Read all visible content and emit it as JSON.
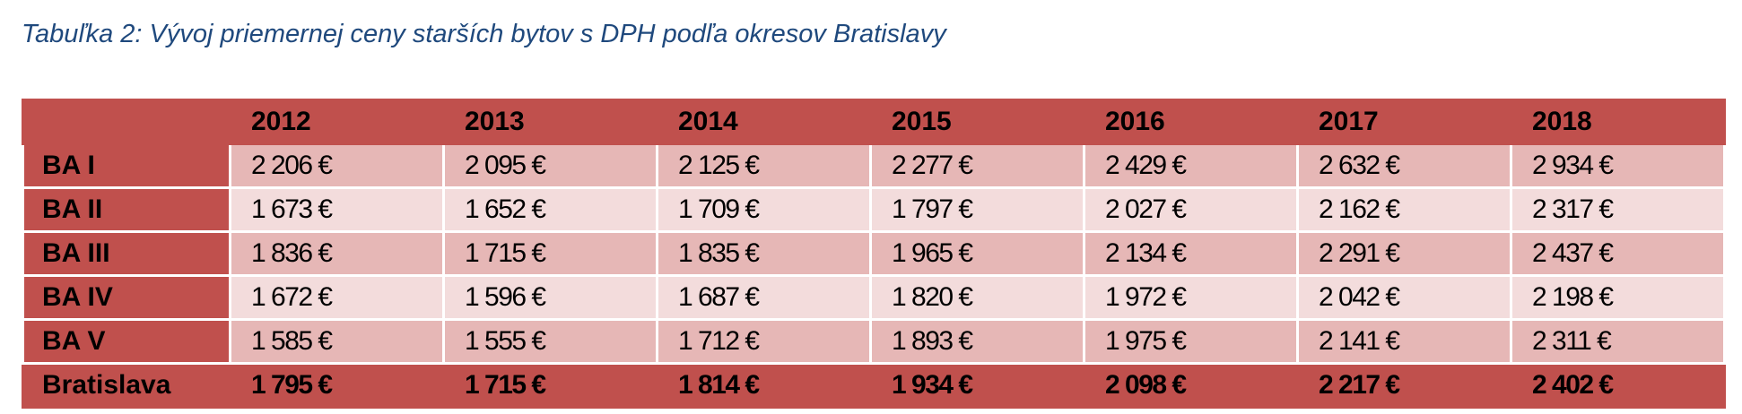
{
  "caption": "Tabuľka 2: Vývoj priemernej ceny starších bytov s DPH podľa okresov Bratislavy",
  "table": {
    "corner": "",
    "years": [
      "2012",
      "2013",
      "2014",
      "2015",
      "2016",
      "2017",
      "2018"
    ],
    "rows": [
      {
        "label": "BA I",
        "values": [
          "2 206 €",
          "2 095 €",
          "2 125 €",
          "2 277 €",
          "2 429 €",
          "2 632 €",
          "2 934 €"
        ]
      },
      {
        "label": "BA II",
        "values": [
          "1 673 €",
          "1 652 €",
          "1 709 €",
          "1 797 €",
          "2 027 €",
          "2 162 €",
          "2 317 €"
        ]
      },
      {
        "label": "BA III",
        "values": [
          "1 836 €",
          "1 715 €",
          "1 835 €",
          "1 965 €",
          "2 134 €",
          "2 291 €",
          "2 437 €"
        ]
      },
      {
        "label": "BA IV",
        "values": [
          "1 672 €",
          "1 596 €",
          "1 687 €",
          "1 820 €",
          "1 972 €",
          "2 042 €",
          "2 198 €"
        ]
      },
      {
        "label": "BA V",
        "values": [
          "1 585 €",
          "1 555 €",
          "1 712 €",
          "1 893 €",
          "1 975 €",
          "2 141 €",
          "2 311 €"
        ]
      }
    ],
    "total": {
      "label": "Bratislava",
      "values": [
        "1 795 €",
        "1 715 €",
        "1 814 €",
        "1 934 €",
        "2 098 €",
        "2 217 €",
        "2 402 €"
      ]
    }
  },
  "colors": {
    "header": "#c0504d",
    "row_odd": "#e6b7b6",
    "row_even": "#f3dcdc",
    "caption": "#1f497d"
  }
}
